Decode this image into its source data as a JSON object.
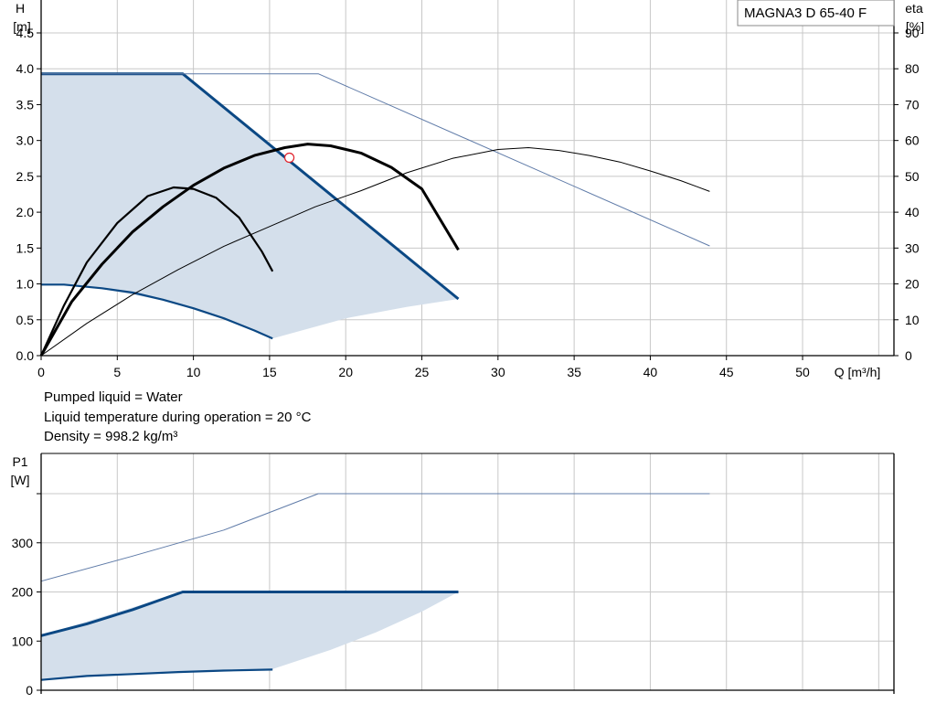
{
  "chart_data": [
    {
      "type": "line",
      "title": "MAGNA3 D 65-40 F",
      "xlabel": "Q [m³/h]",
      "ylabel": [
        "H",
        "[m]"
      ],
      "y2label": [
        "eta",
        "[%]"
      ],
      "xlim": [
        0,
        56
      ],
      "ylim": [
        0,
        4.5
      ],
      "y2lim": [
        0,
        90
      ],
      "xticks": [
        0,
        5,
        10,
        15,
        20,
        25,
        30,
        35,
        40,
        45,
        50
      ],
      "yticks": [
        "0.0",
        "0.5",
        "1.0",
        "1.5",
        "2.0",
        "2.5",
        "3.0",
        "3.5",
        "4.0",
        "4.5"
      ],
      "y2ticks": [
        0,
        10,
        20,
        30,
        40,
        50,
        60,
        70,
        80,
        90
      ],
      "grid": true,
      "legend_position": "top-right",
      "operating_point": {
        "x": 16.3,
        "y": 2.76
      },
      "area": {
        "upper": [
          [
            0,
            3.93
          ],
          [
            9.3,
            3.93
          ],
          [
            27.4,
            0.79
          ]
        ],
        "lower": [
          [
            27.4,
            0.79
          ],
          [
            24,
            0.68
          ],
          [
            20,
            0.52
          ],
          [
            15.2,
            0.24
          ]
        ],
        "left": [
          [
            15.2,
            0.24
          ],
          [
            12,
            0.52
          ],
          [
            8,
            0.77
          ],
          [
            4,
            0.93
          ],
          [
            1,
            0.99
          ],
          [
            0,
            0.99
          ]
        ]
      },
      "series": [
        {
          "axis": "H",
          "values": [
            [
              0,
              3.93
            ],
            [
              9.3,
              3.93
            ],
            [
              27.4,
              0.79
            ]
          ]
        },
        {
          "axis": "H",
          "values": [
            [
              0,
              0.99
            ],
            [
              1.5,
              0.99
            ],
            [
              4,
              0.94
            ],
            [
              6,
              0.88
            ],
            [
              8,
              0.78
            ],
            [
              10,
              0.66
            ],
            [
              12,
              0.52
            ],
            [
              14,
              0.35
            ],
            [
              15.2,
              0.24
            ]
          ]
        },
        {
          "axis": "H",
          "values": [
            [
              0,
              3.93
            ],
            [
              18.2,
              3.93
            ],
            [
              43.9,
              1.53
            ]
          ]
        },
        {
          "axis": "eta",
          "values": [
            [
              0,
              0
            ],
            [
              2,
              15
            ],
            [
              4,
              25.5
            ],
            [
              6,
              34.5
            ],
            [
              8,
              41.5
            ],
            [
              10,
              47.5
            ],
            [
              12,
              52.3
            ],
            [
              14,
              55.8
            ],
            [
              16,
              58
            ],
            [
              17.5,
              59
            ],
            [
              19,
              58.5
            ],
            [
              21,
              56.5
            ],
            [
              23,
              52.5
            ],
            [
              25,
              46.5
            ],
            [
              27.4,
              29.5
            ]
          ]
        },
        {
          "axis": "eta",
          "values": [
            [
              0,
              0
            ],
            [
              1.5,
              14
            ],
            [
              3,
              26
            ],
            [
              5,
              37
            ],
            [
              7,
              44.5
            ],
            [
              8.7,
              46.9
            ],
            [
              10,
              46.5
            ],
            [
              11.5,
              44
            ],
            [
              13,
              38.5
            ],
            [
              14.5,
              29
            ],
            [
              15.2,
              23.5
            ]
          ]
        },
        {
          "axis": "eta",
          "values": [
            [
              0,
              0
            ],
            [
              3,
              9
            ],
            [
              6,
              17
            ],
            [
              9,
              24
            ],
            [
              12,
              30.5
            ],
            [
              15,
              36
            ],
            [
              18,
              41.5
            ],
            [
              21,
              46
            ],
            [
              24,
              51
            ],
            [
              27,
              55
            ],
            [
              30,
              57.5
            ],
            [
              32,
              58
            ],
            [
              34,
              57.2
            ],
            [
              36,
              55.8
            ],
            [
              38,
              54
            ],
            [
              40,
              51.5
            ],
            [
              42,
              48.8
            ],
            [
              43.9,
              45.8
            ]
          ]
        }
      ]
    },
    {
      "type": "line",
      "ylabel": [
        "P1",
        "[W]"
      ],
      "xlim": [
        0,
        56
      ],
      "ylim": [
        0,
        400
      ],
      "yticks": [
        0,
        100,
        200,
        300
      ],
      "grid": true,
      "area": {
        "upper": [
          [
            0,
            111
          ],
          [
            9.3,
            200
          ],
          [
            27.4,
            200
          ]
        ],
        "lower": [
          [
            27.4,
            200
          ],
          [
            25,
            160
          ],
          [
            22,
            118
          ],
          [
            19,
            82
          ],
          [
            15.2,
            43
          ]
        ],
        "left": [
          [
            15.2,
            43
          ],
          [
            10,
            38
          ],
          [
            5,
            31
          ],
          [
            0,
            21
          ]
        ]
      },
      "series": [
        {
          "values": [
            [
              0,
              111
            ],
            [
              3,
              135
            ],
            [
              6,
              164
            ],
            [
              9.3,
              200
            ],
            [
              27.4,
              200
            ]
          ]
        },
        {
          "values": [
            [
              0,
              21
            ],
            [
              3,
              29
            ],
            [
              6,
              33
            ],
            [
              9,
              37
            ],
            [
              12,
              40
            ],
            [
              15.2,
              42
            ]
          ]
        },
        {
          "values": [
            [
              0,
              222
            ],
            [
              6,
              273
            ],
            [
              12,
              326
            ],
            [
              18.2,
              400
            ],
            [
              43.9,
              400
            ]
          ]
        }
      ]
    }
  ],
  "notes": [
    "Pumped liquid = Water",
    "Liquid temperature during operation = 20 °C",
    "Density = 998.2 kg/m³"
  ],
  "colors": {
    "dark_blue": "#0b4884",
    "light_blue": "#5f7ba8",
    "area_fill": "#d4dfeb",
    "grid": "#c8c8c8",
    "black": "#000000",
    "operating_point": "#e0202a"
  }
}
